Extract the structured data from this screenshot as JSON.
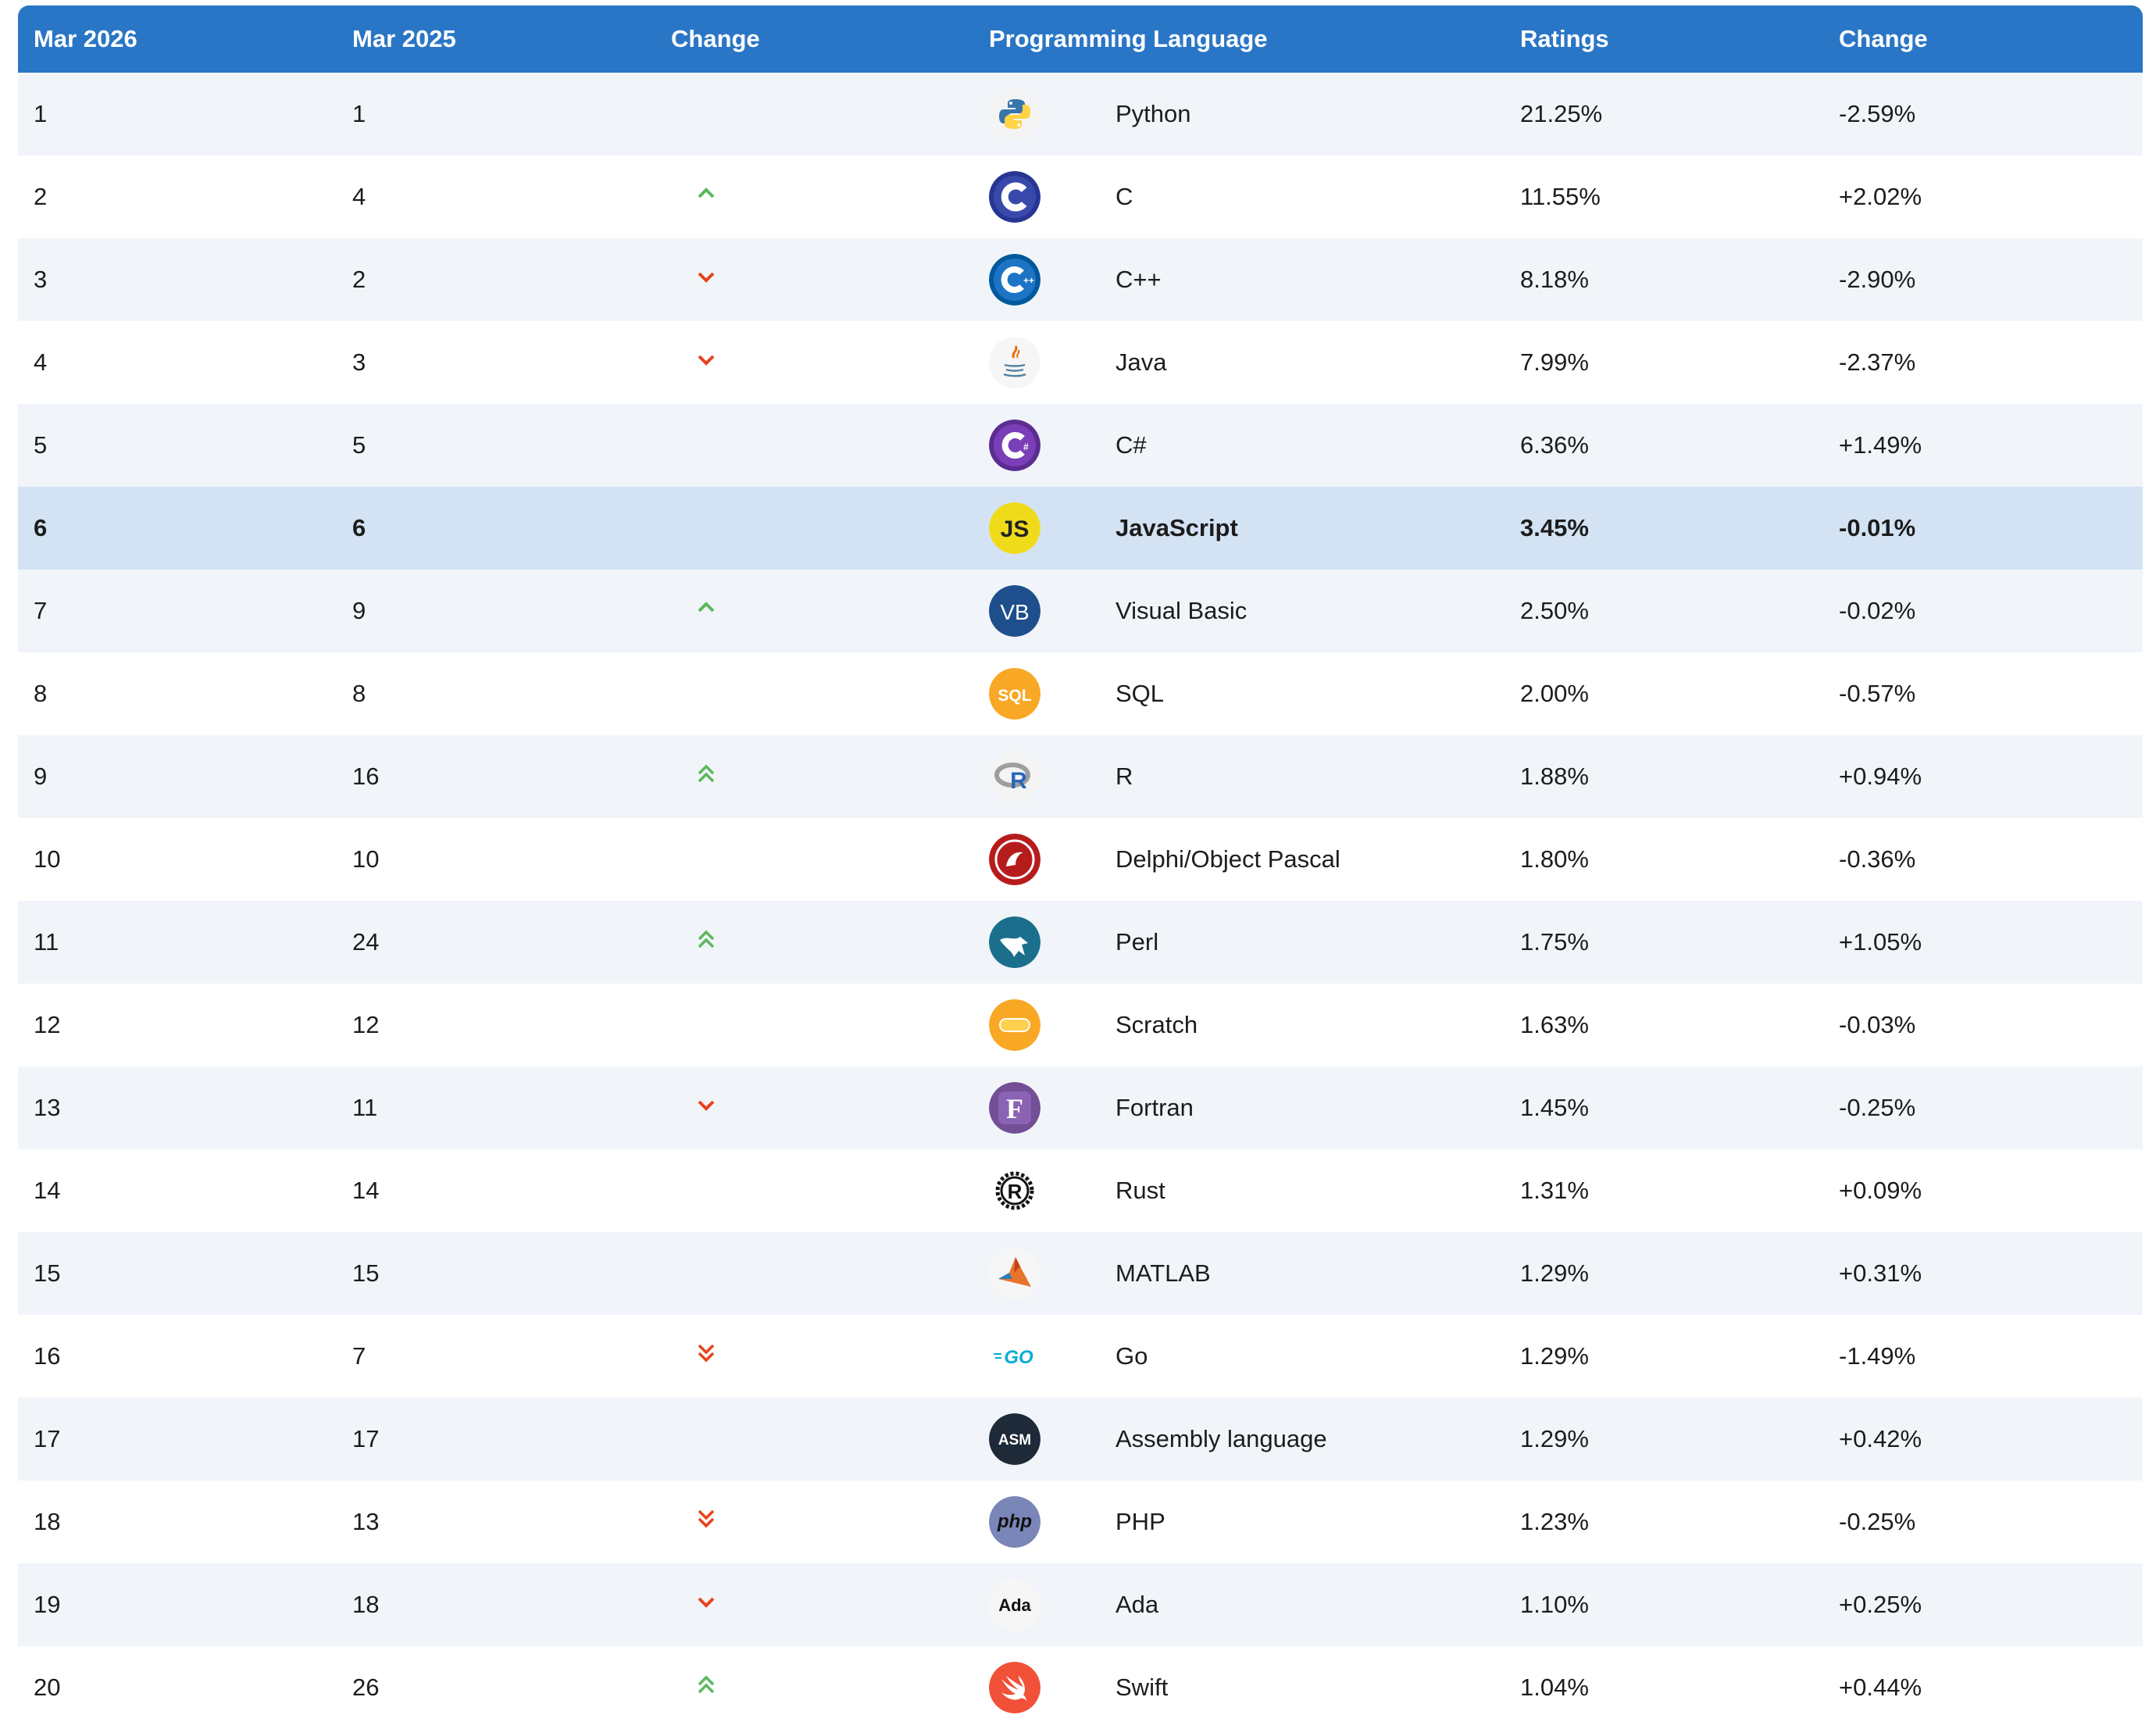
{
  "header": {
    "col_rank_current": "Mar 2026",
    "col_rank_previous": "Mar 2025",
    "col_change_arrow": "Change",
    "col_language": "Programming Language",
    "col_ratings": "Ratings",
    "col_change_pct": "Change"
  },
  "colors": {
    "header_bg": "#2a76c6",
    "row_alt_bg": "#f1f5fa",
    "highlight_bg": "#d3e3f4",
    "up_arrow": "#5cb85c",
    "down_arrow": "#e8421c"
  },
  "rows": [
    {
      "rank": "1",
      "prev": "1",
      "trend": "none",
      "language": "Python",
      "logo": "python-logo-icon",
      "rating": "21.25%",
      "change": "-2.59%"
    },
    {
      "rank": "2",
      "prev": "4",
      "trend": "up",
      "language": "C",
      "logo": "c-logo-icon",
      "rating": "11.55%",
      "change": "+2.02%"
    },
    {
      "rank": "3",
      "prev": "2",
      "trend": "down",
      "language": "C++",
      "logo": "cpp-logo-icon",
      "rating": "8.18%",
      "change": "-2.90%"
    },
    {
      "rank": "4",
      "prev": "3",
      "trend": "down",
      "language": "Java",
      "logo": "java-logo-icon",
      "rating": "7.99%",
      "change": "-2.37%"
    },
    {
      "rank": "5",
      "prev": "5",
      "trend": "none",
      "language": "C#",
      "logo": "csharp-logo-icon",
      "rating": "6.36%",
      "change": "+1.49%"
    },
    {
      "rank": "6",
      "prev": "6",
      "trend": "none",
      "language": "JavaScript",
      "logo": "javascript-logo-icon",
      "logo_text": "JS",
      "rating": "3.45%",
      "change": "-0.01%",
      "highlighted": true
    },
    {
      "rank": "7",
      "prev": "9",
      "trend": "up",
      "language": "Visual Basic",
      "logo": "visual-basic-logo-icon",
      "logo_text": "VB",
      "rating": "2.50%",
      "change": "-0.02%"
    },
    {
      "rank": "8",
      "prev": "8",
      "trend": "none",
      "language": "SQL",
      "logo": "sql-logo-icon",
      "logo_text": "SQL",
      "rating": "2.00%",
      "change": "-0.57%"
    },
    {
      "rank": "9",
      "prev": "16",
      "trend": "up2",
      "language": "R",
      "logo": "r-logo-icon",
      "logo_text": "R",
      "rating": "1.88%",
      "change": "+0.94%"
    },
    {
      "rank": "10",
      "prev": "10",
      "trend": "none",
      "language": "Delphi/Object Pascal",
      "logo": "delphi-logo-icon",
      "rating": "1.80%",
      "change": "-0.36%"
    },
    {
      "rank": "11",
      "prev": "24",
      "trend": "up2",
      "language": "Perl",
      "logo": "perl-logo-icon",
      "rating": "1.75%",
      "change": "+1.05%"
    },
    {
      "rank": "12",
      "prev": "12",
      "trend": "none",
      "language": "Scratch",
      "logo": "scratch-logo-icon",
      "rating": "1.63%",
      "change": "-0.03%"
    },
    {
      "rank": "13",
      "prev": "11",
      "trend": "down",
      "language": "Fortran",
      "logo": "fortran-logo-icon",
      "logo_text": "F",
      "rating": "1.45%",
      "change": "-0.25%"
    },
    {
      "rank": "14",
      "prev": "14",
      "trend": "none",
      "language": "Rust",
      "logo": "rust-logo-icon",
      "logo_text": "R",
      "rating": "1.31%",
      "change": "+0.09%"
    },
    {
      "rank": "15",
      "prev": "15",
      "trend": "none",
      "language": "MATLAB",
      "logo": "matlab-logo-icon",
      "rating": "1.29%",
      "change": "+0.31%"
    },
    {
      "rank": "16",
      "prev": "7",
      "trend": "down2",
      "language": "Go",
      "logo": "go-logo-icon",
      "logo_text": "GO",
      "rating": "1.29%",
      "change": "-1.49%"
    },
    {
      "rank": "17",
      "prev": "17",
      "trend": "none",
      "language": "Assembly language",
      "logo": "assembly-logo-icon",
      "logo_text": "ASM",
      "rating": "1.29%",
      "change": "+0.42%"
    },
    {
      "rank": "18",
      "prev": "13",
      "trend": "down2",
      "language": "PHP",
      "logo": "php-logo-icon",
      "logo_text": "php",
      "rating": "1.23%",
      "change": "-0.25%"
    },
    {
      "rank": "19",
      "prev": "18",
      "trend": "down",
      "language": "Ada",
      "logo": "ada-logo-icon",
      "logo_text": "Ada",
      "rating": "1.10%",
      "change": "+0.25%"
    },
    {
      "rank": "20",
      "prev": "26",
      "trend": "up2",
      "language": "Swift",
      "logo": "swift-logo-icon",
      "rating": "1.04%",
      "change": "+0.44%"
    }
  ]
}
